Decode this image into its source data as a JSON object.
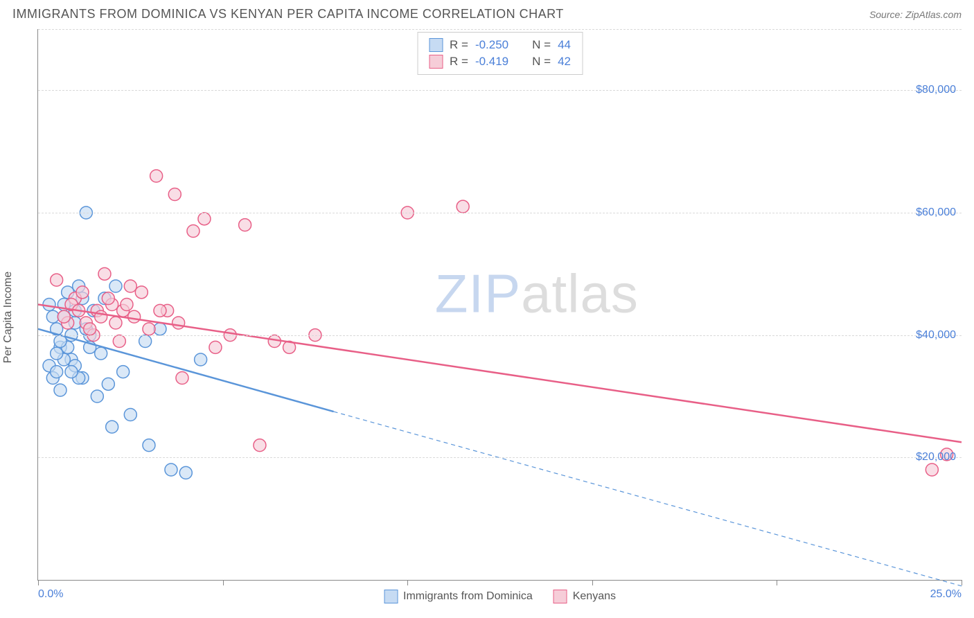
{
  "header": {
    "title": "IMMIGRANTS FROM DOMINICA VS KENYAN PER CAPITA INCOME CORRELATION CHART",
    "source": "Source: ZipAtlas.com"
  },
  "chart": {
    "type": "scatter",
    "ylabel": "Per Capita Income",
    "xlim": [
      0.0,
      25.0
    ],
    "ylim": [
      0,
      90000
    ],
    "yticks": [
      20000,
      40000,
      60000,
      80000
    ],
    "ytick_labels": [
      "$20,000",
      "$40,000",
      "$60,000",
      "$80,000"
    ],
    "xticks": [
      0.0,
      5.0,
      10.0,
      15.0,
      20.0,
      25.0
    ],
    "xtick_labels_shown": {
      "0": "0.0%",
      "5": "25.0%"
    },
    "grid_color": "#d9d9d9",
    "axis_color": "#888888",
    "background_color": "#ffffff",
    "ytick_label_color": "#4a7fd8",
    "xtick_label_color": "#4a7fd8",
    "marker_radius": 9,
    "marker_stroke_width": 1.5,
    "series": {
      "dominica": {
        "label": "Immigrants from Dominica",
        "fill": "#c6dbf3",
        "stroke": "#5a95d9",
        "R": "-0.250",
        "N": "44",
        "points": [
          [
            0.3,
            35000
          ],
          [
            0.4,
            33000
          ],
          [
            0.5,
            41000
          ],
          [
            0.6,
            38000
          ],
          [
            0.7,
            45000
          ],
          [
            0.8,
            47000
          ],
          [
            0.9,
            36000
          ],
          [
            1.0,
            42000
          ],
          [
            1.1,
            48000
          ],
          [
            1.2,
            33000
          ],
          [
            1.3,
            60000
          ],
          [
            1.4,
            40000
          ],
          [
            1.5,
            44000
          ],
          [
            1.6,
            30000
          ],
          [
            1.7,
            37000
          ],
          [
            1.8,
            46000
          ],
          [
            1.9,
            32000
          ],
          [
            2.0,
            25000
          ],
          [
            2.1,
            48000
          ],
          [
            2.3,
            34000
          ],
          [
            2.5,
            27000
          ],
          [
            2.9,
            39000
          ],
          [
            3.0,
            22000
          ],
          [
            3.3,
            41000
          ],
          [
            3.6,
            18000
          ],
          [
            4.0,
            17500
          ],
          [
            4.4,
            36000
          ],
          [
            0.5,
            34000
          ],
          [
            0.6,
            31000
          ],
          [
            0.7,
            36000
          ],
          [
            0.8,
            38000
          ],
          [
            0.9,
            40000
          ],
          [
            1.0,
            35000
          ],
          [
            1.1,
            33000
          ],
          [
            1.2,
            46000
          ],
          [
            1.3,
            41000
          ],
          [
            1.4,
            38000
          ],
          [
            0.4,
            43000
          ],
          [
            0.5,
            37000
          ],
          [
            0.6,
            39000
          ],
          [
            0.3,
            45000
          ],
          [
            0.7,
            43000
          ],
          [
            0.9,
            34000
          ],
          [
            1.0,
            44000
          ]
        ],
        "trend": {
          "start": [
            0.0,
            41000
          ],
          "solid_end": [
            8.0,
            27500
          ],
          "dash_end": [
            25.0,
            -1000
          ]
        }
      },
      "kenyans": {
        "label": "Kenyans",
        "fill": "#f6cdd8",
        "stroke": "#e85f87",
        "R": "-0.419",
        "N": "42",
        "points": [
          [
            0.5,
            49000
          ],
          [
            0.8,
            42000
          ],
          [
            1.0,
            46000
          ],
          [
            1.2,
            47000
          ],
          [
            1.5,
            40000
          ],
          [
            1.6,
            44000
          ],
          [
            1.8,
            50000
          ],
          [
            2.0,
            45000
          ],
          [
            2.2,
            39000
          ],
          [
            2.5,
            48000
          ],
          [
            2.8,
            47000
          ],
          [
            3.0,
            41000
          ],
          [
            3.2,
            66000
          ],
          [
            3.5,
            44000
          ],
          [
            3.7,
            63000
          ],
          [
            3.9,
            33000
          ],
          [
            4.2,
            57000
          ],
          [
            4.5,
            59000
          ],
          [
            4.8,
            38000
          ],
          [
            5.2,
            40000
          ],
          [
            5.6,
            58000
          ],
          [
            6.0,
            22000
          ],
          [
            6.4,
            39000
          ],
          [
            6.8,
            38000
          ],
          [
            7.5,
            40000
          ],
          [
            10.0,
            60000
          ],
          [
            11.5,
            61000
          ],
          [
            0.7,
            43000
          ],
          [
            0.9,
            45000
          ],
          [
            1.1,
            44000
          ],
          [
            1.3,
            42000
          ],
          [
            1.4,
            41000
          ],
          [
            1.7,
            43000
          ],
          [
            1.9,
            46000
          ],
          [
            2.1,
            42000
          ],
          [
            2.3,
            44000
          ],
          [
            2.4,
            45000
          ],
          [
            2.6,
            43000
          ],
          [
            3.3,
            44000
          ],
          [
            3.8,
            42000
          ],
          [
            24.2,
            18000
          ],
          [
            24.6,
            20500
          ]
        ],
        "trend": {
          "start": [
            0.0,
            45000
          ],
          "solid_end": [
            25.0,
            22500
          ],
          "dash_end": [
            25.0,
            22500
          ]
        }
      }
    },
    "stats_box": {
      "R_label": "R =",
      "N_label": "N =",
      "value_color": "#4a7fd8",
      "label_color": "#555555"
    },
    "watermark": {
      "zip": "ZIP",
      "atlas": "atlas"
    }
  }
}
